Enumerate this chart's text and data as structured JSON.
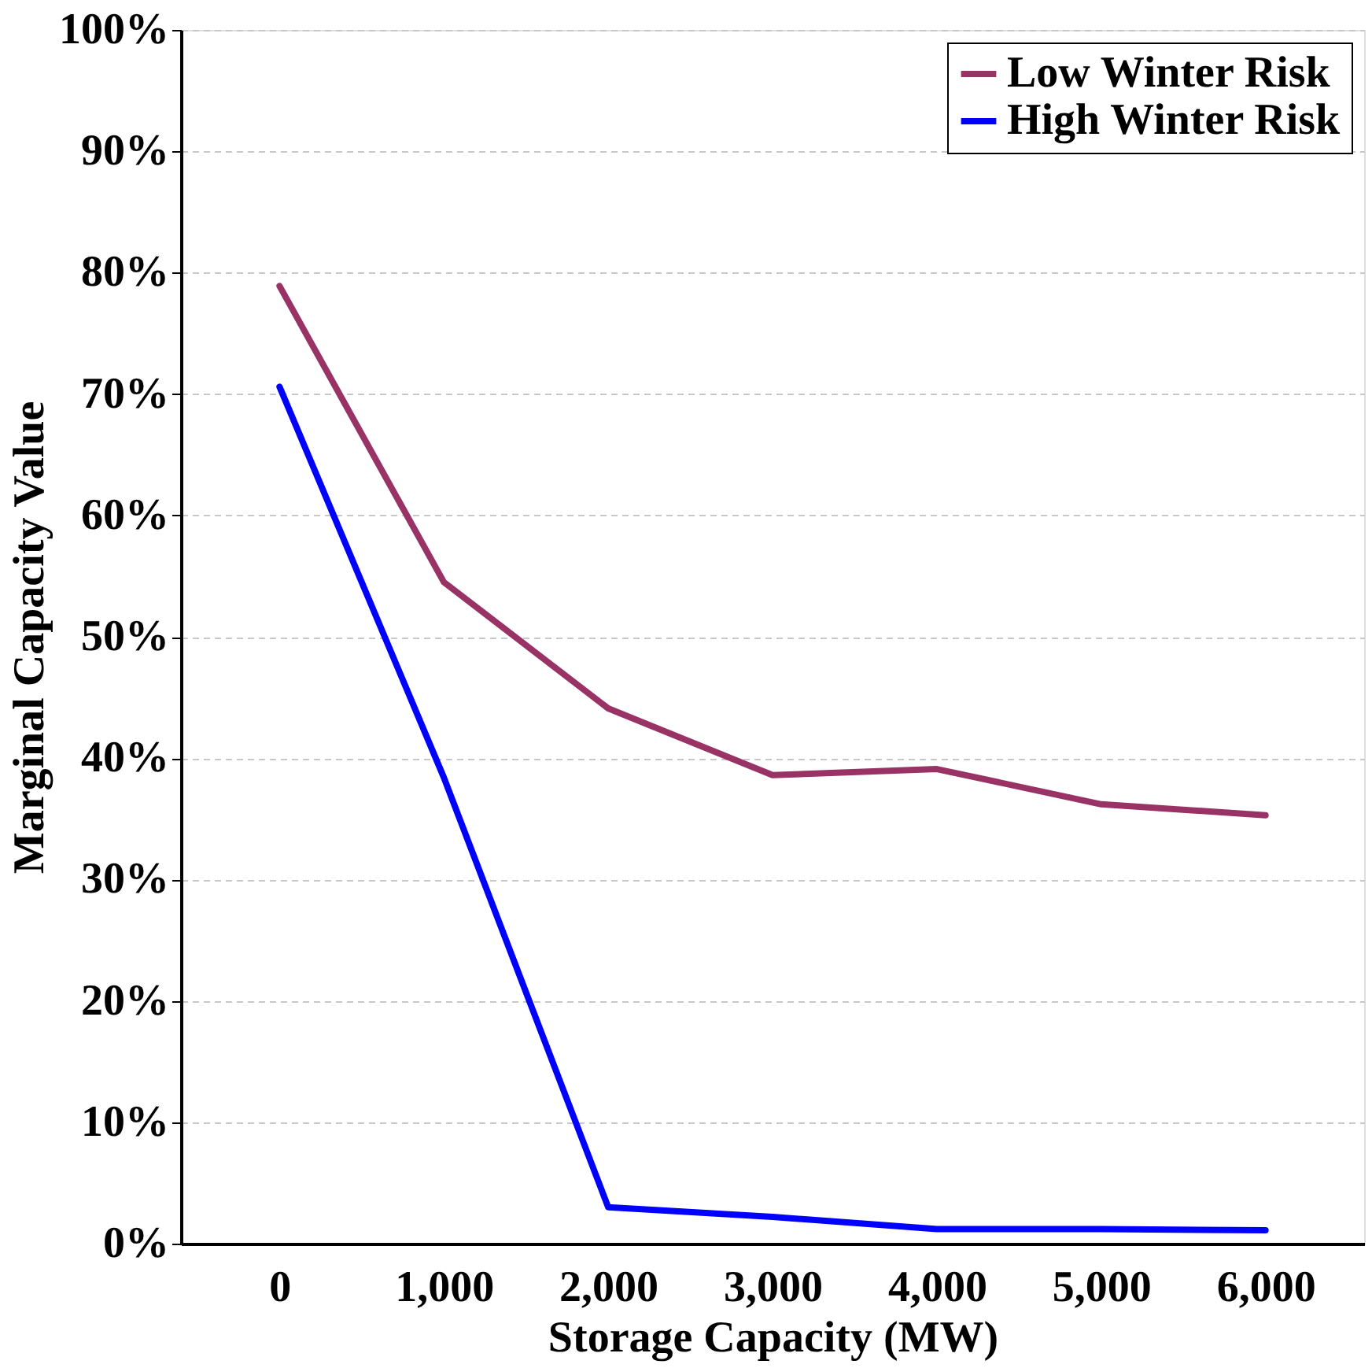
{
  "chart_data": {
    "type": "line",
    "xlabel": "Storage Capacity (MW)",
    "ylabel": "Marginal Capacity Value",
    "categories": [
      "0",
      "1,000",
      "2,000",
      "3,000",
      "4,000",
      "5,000",
      "6,000"
    ],
    "series": [
      {
        "name": "Low Winter Risk",
        "color": "#993366",
        "values": [
          78.9,
          54.5,
          44.1,
          38.6,
          39.1,
          36.2,
          35.3
        ]
      },
      {
        "name": "High Winter Risk",
        "color": "#0000ff",
        "values": [
          70.6,
          38.4,
          3.0,
          2.2,
          1.2,
          1.2,
          1.1
        ]
      }
    ],
    "ylim": [
      0,
      100
    ],
    "yticks": [
      {
        "value": 0,
        "label": "0%"
      },
      {
        "value": 10,
        "label": "10%"
      },
      {
        "value": 20,
        "label": "20%"
      },
      {
        "value": 30,
        "label": "30%"
      },
      {
        "value": 40,
        "label": "40%"
      },
      {
        "value": 50,
        "label": "50%"
      },
      {
        "value": 60,
        "label": "60%"
      },
      {
        "value": 70,
        "label": "70%"
      },
      {
        "value": 80,
        "label": "80%"
      },
      {
        "value": 90,
        "label": "90%"
      },
      {
        "value": 100,
        "label": "100%"
      }
    ],
    "grid": "y",
    "legend": "top right",
    "marker": "none",
    "line_style": "solid"
  }
}
